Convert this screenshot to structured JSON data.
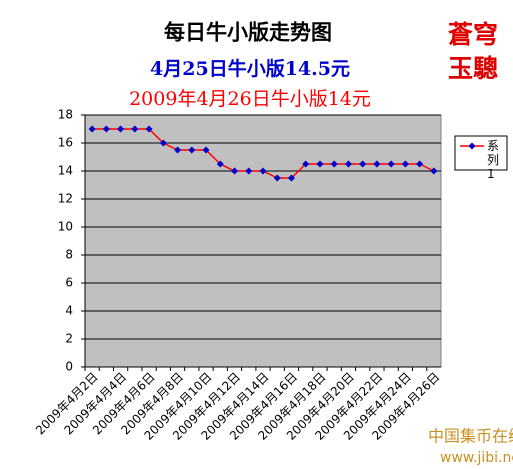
{
  "chart_data": {
    "type": "line",
    "title": "每日牛小版走势图",
    "subtitles": [
      "4月25日牛小版14.5元",
      "2009年4月26日牛小版14元"
    ],
    "categories": [
      "2009年4月2日",
      null,
      "2009年4月4日",
      null,
      "2009年4月6日",
      null,
      "2009年4月8日",
      null,
      "2009年4月10日",
      null,
      "2009年4月12日",
      null,
      "2009年4月14日",
      null,
      "2009年4月16日",
      null,
      "2009年4月18日",
      null,
      "2009年4月20日",
      null,
      "2009年4月22日",
      null,
      "2009年4月24日",
      null,
      "2009年4月26日"
    ],
    "series": [
      {
        "name": "系列1",
        "color": "#ff0000",
        "marker_color": "#0000cc",
        "values": [
          17,
          17,
          17,
          17,
          17,
          16,
          15.5,
          15.5,
          15.5,
          14.5,
          14,
          14,
          14,
          13.5,
          13.5,
          14.5,
          14.5,
          14.5,
          14.5,
          14.5,
          14.5,
          14.5,
          14.5,
          14.5,
          14
        ]
      }
    ],
    "ylim": [
      0,
      18
    ],
    "yticks": [
      0,
      2,
      4,
      6,
      8,
      10,
      12,
      14,
      16,
      18
    ],
    "grid": true,
    "legend": "right"
  },
  "logo": [
    "蒼穹",
    "玉驄"
  ],
  "watermark": {
    "name": "中国集币在线",
    "url": "www.jibi.net"
  }
}
